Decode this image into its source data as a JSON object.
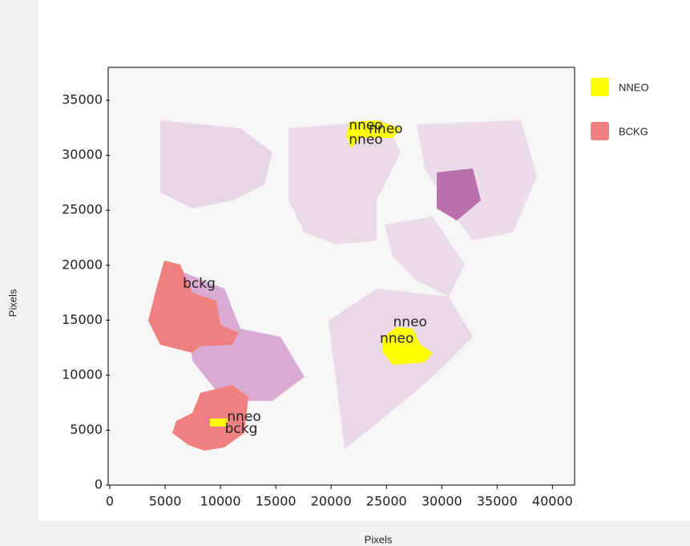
{
  "chart_data": {
    "type": "image",
    "x_label": "Pixels",
    "y_label": "Pixels",
    "xlim": [
      0,
      42000
    ],
    "ylim": [
      0,
      38000
    ],
    "xticks": [
      0,
      5000,
      10000,
      15000,
      20000,
      25000,
      30000,
      35000,
      40000
    ],
    "yticks": [
      0,
      5000,
      10000,
      15000,
      20000,
      25000,
      30000,
      35000
    ],
    "series": [
      {
        "name": "NNEO",
        "color": "#ffff00"
      },
      {
        "name": "BCKG",
        "color": "#f08080"
      }
    ],
    "annotations": [
      {
        "text": "nneo",
        "x": 21600,
        "y": 32700
      },
      {
        "text": "nneo",
        "x": 23400,
        "y": 32400
      },
      {
        "text": "nneo",
        "x": 21600,
        "y": 31400
      },
      {
        "text": "bckg",
        "x": 6600,
        "y": 18300
      },
      {
        "text": "nneo",
        "x": 25600,
        "y": 14800
      },
      {
        "text": "nneo",
        "x": 24400,
        "y": 13300
      },
      {
        "text": "nneo",
        "x": 10600,
        "y": 6200
      },
      {
        "text": "bckg",
        "x": 10400,
        "y": 5100
      }
    ]
  }
}
